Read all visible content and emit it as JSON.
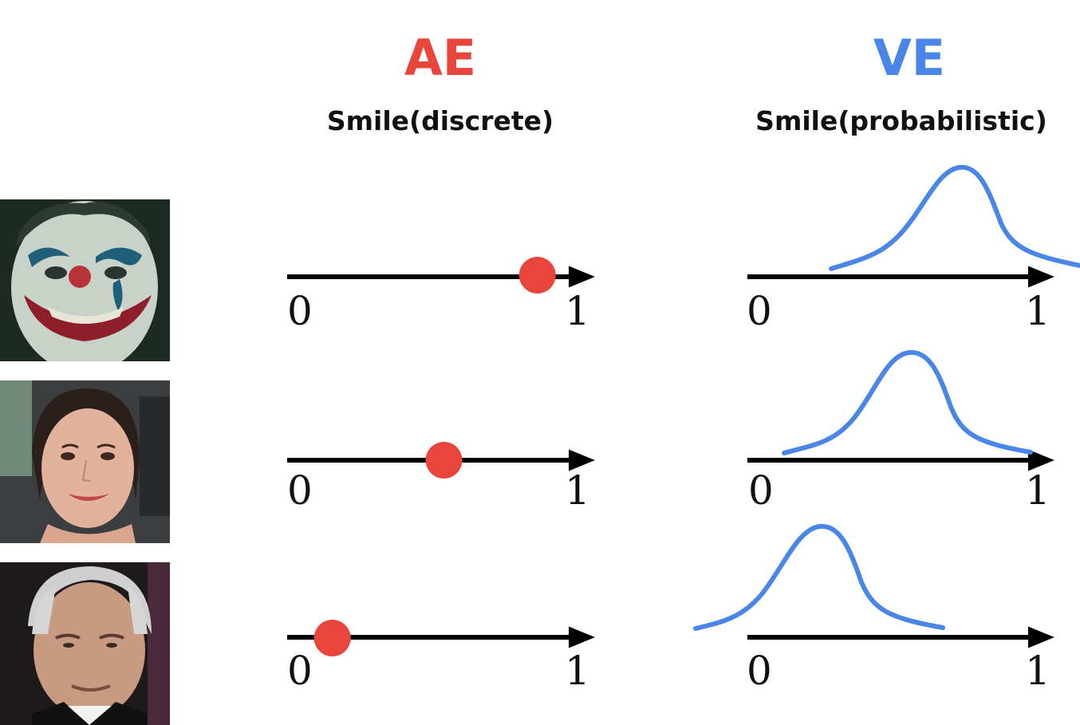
{
  "headers": {
    "ae_title": "AE",
    "ae_subtitle": "Smile(discrete)",
    "ve_title": "VE",
    "ve_subtitle": "Smile(probabilistic)"
  },
  "axis_labels": {
    "min": "0",
    "max": "1"
  },
  "colors": {
    "ae": "#e8453c",
    "ve": "#4a86e8",
    "axis": "#000000"
  },
  "rows": [
    {
      "face": "clown-face-photo",
      "ae_value": 0.83,
      "ve_mean": 0.66
    },
    {
      "face": "smiling-woman-photo",
      "ae_value": 0.52,
      "ve_mean": 0.47
    },
    {
      "face": "older-man-photo",
      "ae_value": 0.15,
      "ve_mean": 0.23
    }
  ]
}
